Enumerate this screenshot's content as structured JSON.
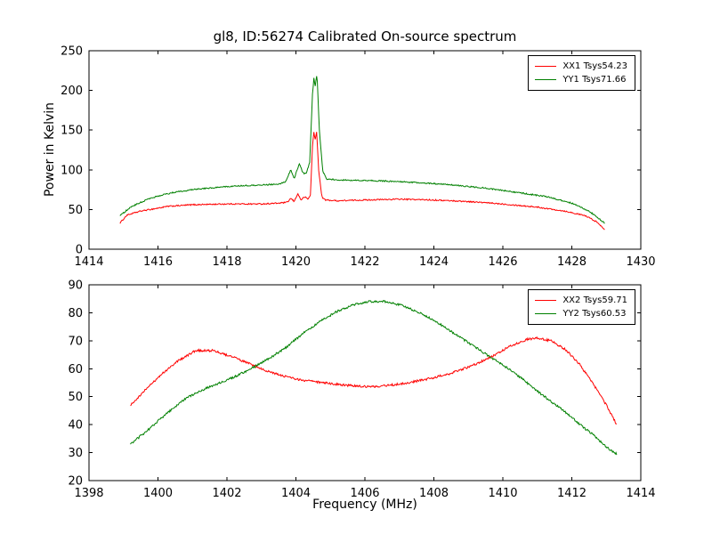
{
  "figure": {
    "background": "#ffffff",
    "axis_color": "#000000"
  },
  "chart_data": [
    {
      "type": "line",
      "title": "gl8, ID:56274 Calibrated On-source spectrum",
      "xlabel": "",
      "ylabel": "Power in Kelvin",
      "xlim": [
        1414,
        1430
      ],
      "ylim": [
        0,
        250
      ],
      "xticks": [
        1414,
        1416,
        1418,
        1420,
        1422,
        1424,
        1426,
        1428,
        1430
      ],
      "yticks": [
        0,
        50,
        100,
        150,
        200,
        250
      ],
      "grid": false,
      "legend_position": "upper right",
      "series": [
        {
          "name": "XX1 Tsys54.23",
          "color": "#ff0000",
          "noise": 0.8,
          "points": [
            [
              1414.9,
              33
            ],
            [
              1415.1,
              43
            ],
            [
              1415.5,
              48
            ],
            [
              1415.9,
              51
            ],
            [
              1416.3,
              54
            ],
            [
              1417,
              56
            ],
            [
              1418,
              57
            ],
            [
              1419,
              57
            ],
            [
              1419.5,
              58
            ],
            [
              1419.75,
              59
            ],
            [
              1419.85,
              64
            ],
            [
              1419.95,
              60
            ],
            [
              1420.05,
              70
            ],
            [
              1420.15,
              62
            ],
            [
              1420.25,
              66
            ],
            [
              1420.35,
              63
            ],
            [
              1420.42,
              68
            ],
            [
              1420.48,
              130
            ],
            [
              1420.52,
              147
            ],
            [
              1420.56,
              138
            ],
            [
              1420.6,
              148
            ],
            [
              1420.66,
              100
            ],
            [
              1420.75,
              66
            ],
            [
              1420.85,
              62
            ],
            [
              1421.2,
              61
            ],
            [
              1422,
              62
            ],
            [
              1423,
              63
            ],
            [
              1424,
              62
            ],
            [
              1425,
              60
            ],
            [
              1426,
              57
            ],
            [
              1427,
              53
            ],
            [
              1427.8,
              48
            ],
            [
              1428.4,
              42
            ],
            [
              1428.7,
              35
            ],
            [
              1428.95,
              25
            ]
          ]
        },
        {
          "name": "YY1 Tsys71.66",
          "color": "#008000",
          "noise": 0.8,
          "points": [
            [
              1414.9,
              42
            ],
            [
              1415.2,
              53
            ],
            [
              1415.6,
              61
            ],
            [
              1416,
              67
            ],
            [
              1416.5,
              72
            ],
            [
              1417.2,
              76
            ],
            [
              1418,
              79
            ],
            [
              1419,
              81
            ],
            [
              1419.5,
              82
            ],
            [
              1419.7,
              85
            ],
            [
              1419.85,
              100
            ],
            [
              1419.95,
              89
            ],
            [
              1420.1,
              108
            ],
            [
              1420.2,
              96
            ],
            [
              1420.3,
              95
            ],
            [
              1420.4,
              110
            ],
            [
              1420.48,
              195
            ],
            [
              1420.52,
              215
            ],
            [
              1420.56,
              205
            ],
            [
              1420.61,
              222
            ],
            [
              1420.68,
              150
            ],
            [
              1420.78,
              98
            ],
            [
              1420.9,
              88
            ],
            [
              1421.5,
              87
            ],
            [
              1422.5,
              86
            ],
            [
              1423.5,
              84
            ],
            [
              1424.5,
              81
            ],
            [
              1425.5,
              77
            ],
            [
              1426.5,
              71
            ],
            [
              1427.3,
              66
            ],
            [
              1428,
              58
            ],
            [
              1428.5,
              48
            ],
            [
              1428.95,
              33
            ]
          ]
        }
      ]
    },
    {
      "type": "line",
      "title": "",
      "xlabel": "Frequency (MHz)",
      "ylabel": "",
      "xlim": [
        1398,
        1414
      ],
      "ylim": [
        20,
        90
      ],
      "xticks": [
        1398,
        1400,
        1402,
        1404,
        1406,
        1408,
        1410,
        1412,
        1414
      ],
      "yticks": [
        20,
        30,
        40,
        50,
        60,
        70,
        80,
        90
      ],
      "grid": false,
      "legend_position": "upper right",
      "series": [
        {
          "name": "XX2 Tsys59.71",
          "color": "#ff0000",
          "noise": 0.4,
          "points": [
            [
              1399.2,
              47
            ],
            [
              1399.6,
              52
            ],
            [
              1400.1,
              58
            ],
            [
              1400.6,
              63
            ],
            [
              1401.1,
              66.5
            ],
            [
              1401.6,
              66.5
            ],
            [
              1402.1,
              64.5
            ],
            [
              1402.6,
              62
            ],
            [
              1403.1,
              59.5
            ],
            [
              1403.6,
              57.5
            ],
            [
              1404.1,
              56
            ],
            [
              1404.8,
              55
            ],
            [
              1405.5,
              54
            ],
            [
              1406.3,
              53.5
            ],
            [
              1407,
              54.5
            ],
            [
              1407.7,
              56
            ],
            [
              1408.4,
              58
            ],
            [
              1409.1,
              61
            ],
            [
              1409.7,
              64.5
            ],
            [
              1410.2,
              68
            ],
            [
              1410.7,
              70.5
            ],
            [
              1411,
              71
            ],
            [
              1411.4,
              70
            ],
            [
              1411.8,
              67
            ],
            [
              1412.2,
              62
            ],
            [
              1412.6,
              55
            ],
            [
              1413,
              47
            ],
            [
              1413.3,
              40
            ]
          ]
        },
        {
          "name": "YY2 Tsys60.53",
          "color": "#008000",
          "noise": 0.4,
          "points": [
            [
              1399.2,
              33
            ],
            [
              1399.7,
              38
            ],
            [
              1400.2,
              43.5
            ],
            [
              1400.7,
              48.5
            ],
            [
              1401.2,
              52
            ],
            [
              1401.7,
              54.5
            ],
            [
              1402.2,
              57
            ],
            [
              1402.7,
              60
            ],
            [
              1403.2,
              63.5
            ],
            [
              1403.7,
              67.5
            ],
            [
              1404.2,
              72.5
            ],
            [
              1404.7,
              77
            ],
            [
              1405.2,
              80.5
            ],
            [
              1405.7,
              83
            ],
            [
              1406.1,
              84
            ],
            [
              1406.6,
              84
            ],
            [
              1407.1,
              82.5
            ],
            [
              1407.6,
              80
            ],
            [
              1408.1,
              76.5
            ],
            [
              1408.6,
              72.5
            ],
            [
              1409.1,
              68.5
            ],
            [
              1409.6,
              64.5
            ],
            [
              1410.1,
              60.5
            ],
            [
              1410.6,
              56
            ],
            [
              1411.1,
              51
            ],
            [
              1411.6,
              46.5
            ],
            [
              1412.1,
              41.5
            ],
            [
              1412.6,
              36.5
            ],
            [
              1413,
              32
            ],
            [
              1413.3,
              29.5
            ]
          ]
        }
      ]
    }
  ]
}
